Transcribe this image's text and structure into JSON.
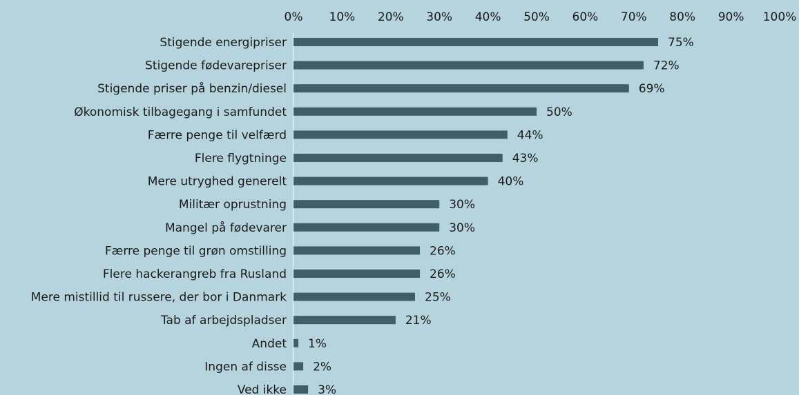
{
  "chart_data": {
    "type": "barh",
    "color": "#3e5f66",
    "categories": [
      "Stigende energipriser",
      "Stigende fødevarepriser",
      "Stigende priser på benzin/diesel",
      "Økonomisk tilbagegang i samfundet",
      "Færre penge til velfærd",
      "Flere flygtninge",
      "Mere utryghed generelt",
      "Militær oprustning",
      "Mangel på fødevarer",
      "Færre penge til grøn omstilling",
      "Flere hackerangreb fra Rusland",
      "Mere mistillid til russere, der bor i Danmark",
      "Tab af arbejdspladser",
      "Andet",
      "Ingen af disse",
      "Ved ikke"
    ],
    "values": [
      75,
      72,
      69,
      50,
      44,
      43,
      40,
      30,
      30,
      26,
      26,
      25,
      21,
      1,
      2,
      3
    ],
    "value_labels": [
      "75%",
      "72%",
      "69%",
      "50%",
      "44%",
      "43%",
      "40%",
      "30%",
      "30%",
      "26%",
      "26%",
      "25%",
      "21%",
      "1%",
      "2%",
      "3%"
    ],
    "xlim": [
      0,
      100
    ],
    "xticks": [
      {
        "value": 0,
        "label": "0%"
      },
      {
        "value": 10,
        "label": "10%"
      },
      {
        "value": 20,
        "label": "20%"
      },
      {
        "value": 30,
        "label": "30%"
      },
      {
        "value": 40,
        "label": "40%"
      },
      {
        "value": 50,
        "label": "50%"
      },
      {
        "value": 60,
        "label": "60%"
      },
      {
        "value": 70,
        "label": "70%"
      },
      {
        "value": 80,
        "label": "80%"
      },
      {
        "value": 90,
        "label": "90%"
      },
      {
        "value": 100,
        "label": "100%"
      }
    ]
  }
}
